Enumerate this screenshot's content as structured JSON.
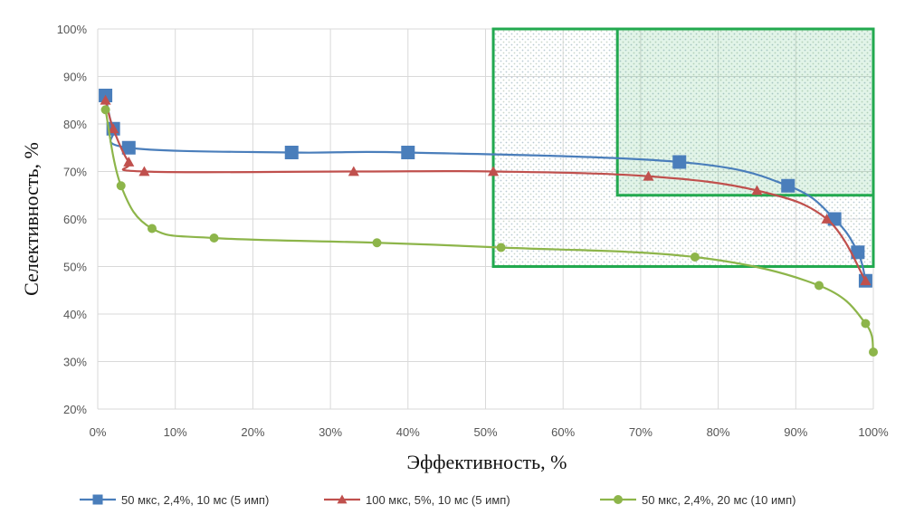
{
  "chart_data": {
    "type": "line",
    "xlabel": "Эффективность,  %",
    "ylabel": "Селективность,  %",
    "xlim": [
      0,
      100
    ],
    "ylim": [
      20,
      100
    ],
    "x_ticks": [
      "0%",
      "10%",
      "20%",
      "30%",
      "40%",
      "50%",
      "60%",
      "70%",
      "80%",
      "90%",
      "100%"
    ],
    "y_ticks": [
      "20%",
      "30%",
      "40%",
      "50%",
      "60%",
      "70%",
      "80%",
      "90%",
      "100%"
    ],
    "grid": true,
    "legend_position": "bottom",
    "series": [
      {
        "name": "50 мкс, 2,4%, 10 мс (5 имп)",
        "color": "#4a7ebb",
        "marker": "square",
        "x": [
          1,
          2,
          4,
          25,
          40,
          75,
          89,
          95,
          98,
          99
        ],
        "y": [
          86,
          79,
          75,
          74,
          74,
          72,
          67,
          60,
          53,
          47
        ]
      },
      {
        "name": "100 мкс, 5%, 10 мс (5 имп)",
        "color": "#c0504d",
        "marker": "triangle",
        "x": [
          1,
          2,
          4,
          6,
          33,
          51,
          71,
          85,
          94,
          99
        ],
        "y": [
          85,
          79,
          72,
          70,
          70,
          70,
          69,
          66,
          60,
          47
        ]
      },
      {
        "name": "50 мкс, 2,4%, 20 мс (10 имп)",
        "color": "#8db54a",
        "marker": "circle",
        "x": [
          1,
          3,
          7,
          15,
          36,
          52,
          77,
          93,
          99,
          100
        ],
        "y": [
          83,
          67,
          58,
          56,
          55,
          54,
          52,
          46,
          38,
          32
        ]
      }
    ],
    "regions": [
      {
        "x": [
          51,
          100
        ],
        "y": [
          50,
          100
        ],
        "style": "dotted",
        "border_color": "#22a94f"
      },
      {
        "x": [
          67,
          100
        ],
        "y": [
          65,
          100
        ],
        "style": "filled",
        "border_color": "#22a94f"
      }
    ]
  }
}
